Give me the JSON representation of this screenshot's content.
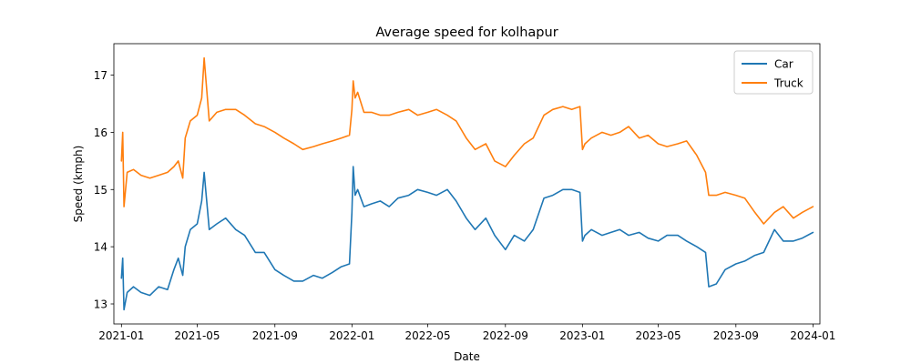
{
  "chart_data": {
    "type": "line",
    "title": "Average speed for kolhapur",
    "xlabel": "Date",
    "ylabel": "Speed (kmph)",
    "x_axis_type": "date",
    "xlim": [
      "2020-12-20",
      "2024-01-12"
    ],
    "ylim": [
      12.65,
      17.55
    ],
    "xticks": [
      "2021-01-01",
      "2021-05-01",
      "2021-09-01",
      "2022-01-01",
      "2022-05-01",
      "2022-09-01",
      "2023-01-01",
      "2023-05-01",
      "2023-09-01",
      "2024-01-01"
    ],
    "xtick_labels": [
      "2021-01",
      "2021-05",
      "2021-09",
      "2022-01",
      "2022-05",
      "2022-09",
      "2023-01",
      "2023-05",
      "2023-09",
      "2024-01"
    ],
    "yticks": [
      13,
      14,
      15,
      16,
      17
    ],
    "ytick_labels": [
      "13",
      "14",
      "15",
      "16",
      "17"
    ],
    "grid": false,
    "legend": {
      "placement": "top-right"
    },
    "series": [
      {
        "name": "Car",
        "color": "#1f77b4",
        "x": [
          "2021-01-01",
          "2021-01-03",
          "2021-01-05",
          "2021-01-10",
          "2021-01-20",
          "2021-02-01",
          "2021-02-15",
          "2021-03-01",
          "2021-03-15",
          "2021-03-25",
          "2021-04-01",
          "2021-04-08",
          "2021-04-12",
          "2021-04-20",
          "2021-05-01",
          "2021-05-08",
          "2021-05-12",
          "2021-05-20",
          "2021-06-01",
          "2021-06-15",
          "2021-07-01",
          "2021-07-15",
          "2021-08-01",
          "2021-08-15",
          "2021-09-01",
          "2021-09-15",
          "2021-10-01",
          "2021-10-15",
          "2021-11-01",
          "2021-11-15",
          "2021-12-01",
          "2021-12-15",
          "2021-12-28",
          "2022-01-01",
          "2022-01-03",
          "2022-01-06",
          "2022-01-10",
          "2022-01-20",
          "2022-02-01",
          "2022-02-15",
          "2022-03-01",
          "2022-03-15",
          "2022-04-01",
          "2022-04-15",
          "2022-05-01",
          "2022-05-15",
          "2022-06-01",
          "2022-06-15",
          "2022-07-01",
          "2022-07-15",
          "2022-08-01",
          "2022-08-15",
          "2022-09-01",
          "2022-09-15",
          "2022-10-01",
          "2022-10-15",
          "2022-11-01",
          "2022-11-15",
          "2022-12-01",
          "2022-12-15",
          "2022-12-28",
          "2023-01-01",
          "2023-01-05",
          "2023-01-15",
          "2023-02-01",
          "2023-02-15",
          "2023-03-01",
          "2023-03-15",
          "2023-04-01",
          "2023-04-15",
          "2023-05-01",
          "2023-05-15",
          "2023-06-01",
          "2023-06-15",
          "2023-07-01",
          "2023-07-15",
          "2023-07-20",
          "2023-08-01",
          "2023-08-15",
          "2023-09-01",
          "2023-09-15",
          "2023-10-01",
          "2023-10-15",
          "2023-11-01",
          "2023-11-15",
          "2023-12-01",
          "2023-12-15",
          "2024-01-01"
        ],
        "values": [
          13.45,
          13.8,
          12.9,
          13.2,
          13.3,
          13.2,
          13.15,
          13.3,
          13.25,
          13.6,
          13.8,
          13.5,
          14.0,
          14.3,
          14.4,
          14.8,
          15.3,
          14.3,
          14.4,
          14.5,
          14.3,
          14.2,
          13.9,
          13.9,
          13.6,
          13.5,
          13.4,
          13.4,
          13.5,
          13.45,
          13.55,
          13.65,
          13.7,
          14.6,
          15.4,
          14.9,
          15.0,
          14.7,
          14.75,
          14.8,
          14.7,
          14.85,
          14.9,
          15.0,
          14.95,
          14.9,
          15.0,
          14.8,
          14.5,
          14.3,
          14.5,
          14.2,
          13.95,
          14.2,
          14.1,
          14.3,
          14.85,
          14.9,
          15.0,
          15.0,
          14.95,
          14.1,
          14.2,
          14.3,
          14.2,
          14.25,
          14.3,
          14.2,
          14.25,
          14.15,
          14.1,
          14.2,
          14.2,
          14.1,
          14.0,
          13.9,
          13.3,
          13.35,
          13.6,
          13.7,
          13.75,
          13.85,
          13.9,
          14.3,
          14.1,
          14.1,
          14.15,
          14.25
        ]
      },
      {
        "name": "Truck",
        "color": "#ff7f0e",
        "x": [
          "2021-01-01",
          "2021-01-03",
          "2021-01-05",
          "2021-01-10",
          "2021-01-20",
          "2021-02-01",
          "2021-02-15",
          "2021-03-01",
          "2021-03-15",
          "2021-03-25",
          "2021-04-01",
          "2021-04-08",
          "2021-04-12",
          "2021-04-20",
          "2021-05-01",
          "2021-05-08",
          "2021-05-12",
          "2021-05-20",
          "2021-06-01",
          "2021-06-15",
          "2021-07-01",
          "2021-07-15",
          "2021-08-01",
          "2021-08-15",
          "2021-09-01",
          "2021-09-15",
          "2021-10-01",
          "2021-10-15",
          "2021-11-01",
          "2021-11-15",
          "2021-12-01",
          "2021-12-15",
          "2021-12-28",
          "2022-01-01",
          "2022-01-03",
          "2022-01-06",
          "2022-01-10",
          "2022-01-20",
          "2022-02-01",
          "2022-02-15",
          "2022-03-01",
          "2022-03-15",
          "2022-04-01",
          "2022-04-15",
          "2022-05-01",
          "2022-05-15",
          "2022-06-01",
          "2022-06-15",
          "2022-07-01",
          "2022-07-15",
          "2022-08-01",
          "2022-08-15",
          "2022-09-01",
          "2022-09-15",
          "2022-10-01",
          "2022-10-15",
          "2022-11-01",
          "2022-11-15",
          "2022-12-01",
          "2022-12-15",
          "2022-12-28",
          "2023-01-01",
          "2023-01-05",
          "2023-01-15",
          "2023-02-01",
          "2023-02-15",
          "2023-03-01",
          "2023-03-15",
          "2023-04-01",
          "2023-04-15",
          "2023-05-01",
          "2023-05-15",
          "2023-06-01",
          "2023-06-15",
          "2023-07-01",
          "2023-07-15",
          "2023-07-20",
          "2023-08-01",
          "2023-08-15",
          "2023-09-01",
          "2023-09-15",
          "2023-10-01",
          "2023-10-15",
          "2023-11-01",
          "2023-11-15",
          "2023-12-01",
          "2023-12-15",
          "2024-01-01"
        ],
        "values": [
          15.5,
          16.0,
          14.7,
          15.3,
          15.35,
          15.25,
          15.2,
          15.25,
          15.3,
          15.4,
          15.5,
          15.2,
          15.9,
          16.2,
          16.3,
          16.6,
          17.3,
          16.2,
          16.35,
          16.4,
          16.4,
          16.3,
          16.15,
          16.1,
          16.0,
          15.9,
          15.8,
          15.7,
          15.75,
          15.8,
          15.85,
          15.9,
          15.95,
          16.4,
          16.9,
          16.6,
          16.7,
          16.35,
          16.35,
          16.3,
          16.3,
          16.35,
          16.4,
          16.3,
          16.35,
          16.4,
          16.3,
          16.2,
          15.9,
          15.7,
          15.8,
          15.5,
          15.4,
          15.6,
          15.8,
          15.9,
          16.3,
          16.4,
          16.45,
          16.4,
          16.45,
          15.7,
          15.8,
          15.9,
          16.0,
          15.95,
          16.0,
          16.1,
          15.9,
          15.95,
          15.8,
          15.75,
          15.8,
          15.85,
          15.6,
          15.3,
          14.9,
          14.9,
          14.95,
          14.9,
          14.85,
          14.6,
          14.4,
          14.6,
          14.7,
          14.5,
          14.6,
          14.7
        ]
      }
    ]
  }
}
